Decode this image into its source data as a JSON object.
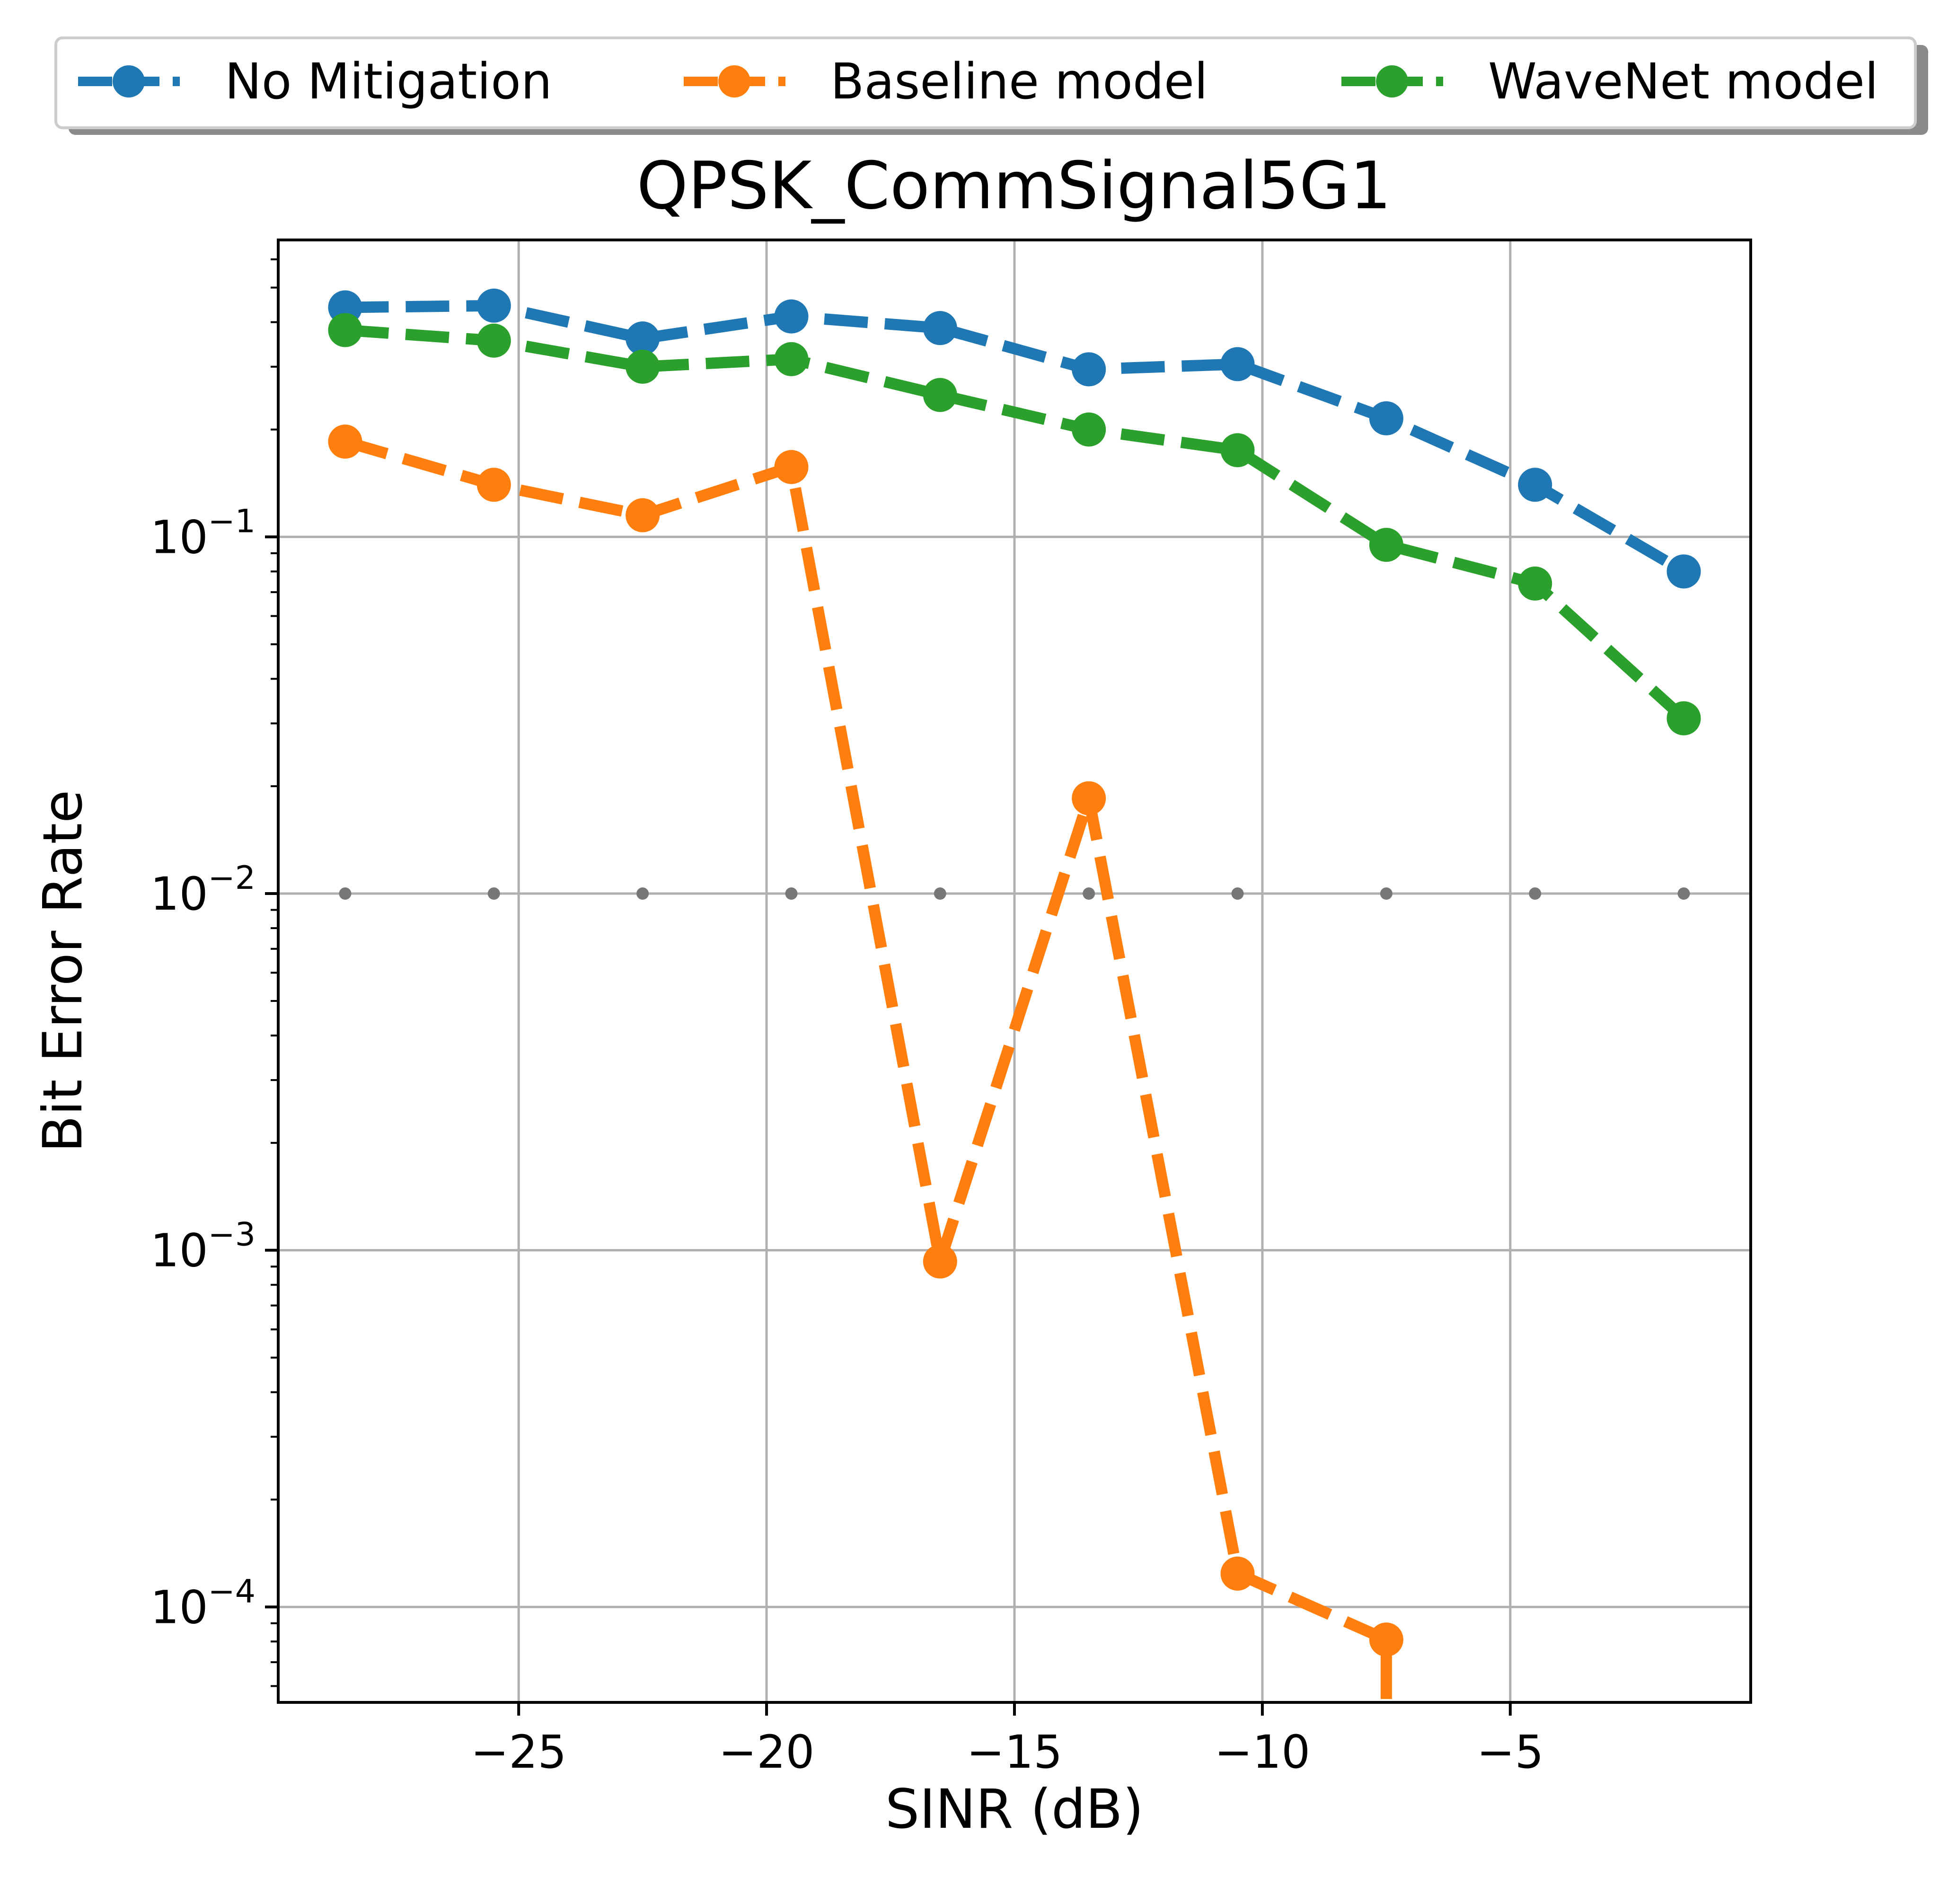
{
  "chart_data": {
    "type": "line",
    "title": "QPSK_CommSignal5G1",
    "xlabel": "SINR (dB)",
    "ylabel": "Bit Error Rate",
    "yscale": "log",
    "xlim": [
      -29.85,
      -0.15
    ],
    "ylim": [
      5.4e-05,
      0.68
    ],
    "grid": true,
    "legend_position": "top-center",
    "x_ticks": [
      {
        "value": -25,
        "label": "−25"
      },
      {
        "value": -20,
        "label": "−20"
      },
      {
        "value": -15,
        "label": "−15"
      },
      {
        "value": -10,
        "label": "−10"
      },
      {
        "value": -5,
        "label": "−5"
      }
    ],
    "y_ticks": [
      {
        "value": 0.1,
        "base": "10",
        "exp": "−1"
      },
      {
        "value": 0.01,
        "base": "10",
        "exp": "−2"
      },
      {
        "value": 0.001,
        "base": "10",
        "exp": "−3"
      },
      {
        "value": 0.0001,
        "base": "10",
        "exp": "−4"
      }
    ],
    "x": [
      -28.5,
      -25.5,
      -22.5,
      -19.5,
      -16.5,
      -13.5,
      -10.5,
      -7.5,
      -4.5,
      -1.5
    ],
    "series": [
      {
        "name": "No Mitigation",
        "color": "#1f77b4",
        "values": [
          0.44,
          0.445,
          0.36,
          0.415,
          0.385,
          0.295,
          0.305,
          0.215,
          0.14,
          0.08
        ]
      },
      {
        "name": "Baseline model",
        "color": "#ff7f0e",
        "values": [
          0.185,
          0.14,
          0.115,
          0.157,
          0.00093,
          0.0185,
          0.000124,
          8.1e-05,
          null,
          null
        ],
        "tail_to_below_axis_at_x": -7.5
      },
      {
        "name": "WaveNet model",
        "color": "#2ca02c",
        "values": [
          0.38,
          0.355,
          0.3,
          0.315,
          0.25,
          0.2,
          0.175,
          0.095,
          0.074,
          0.031
        ]
      }
    ],
    "reference_markers": {
      "name": "BER 1e-2 reference",
      "color": "#777777",
      "y": 0.01,
      "x": [
        -28.5,
        -25.5,
        -22.5,
        -19.5,
        -16.5,
        -13.5,
        -10.5,
        -7.5,
        -4.5,
        -1.5
      ]
    }
  }
}
